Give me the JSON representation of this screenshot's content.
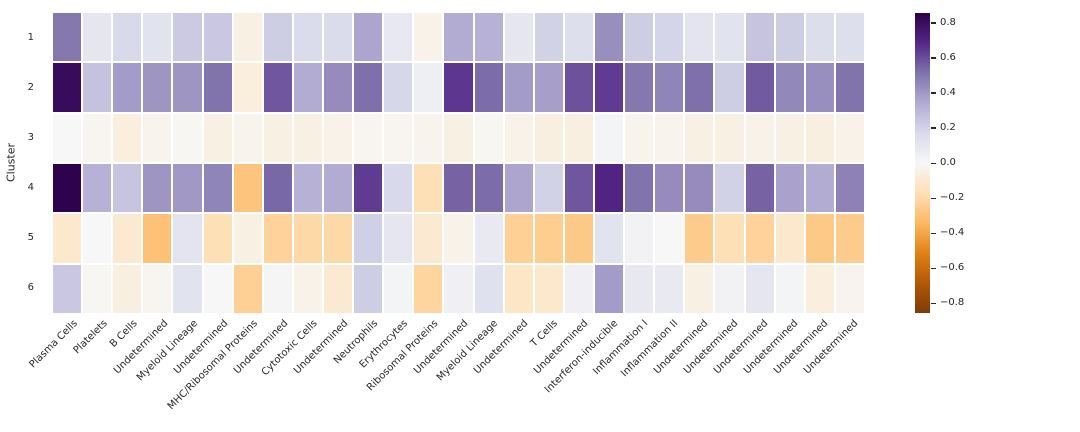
{
  "figure": {
    "background": "#ffffff"
  },
  "y_axis": {
    "label": "Cluster",
    "tick_labels": [
      "1",
      "2",
      "3",
      "4",
      "5",
      "6"
    ]
  },
  "x_axis": {
    "tick_labels": [
      "Plasma Cells",
      "Platelets",
      "B Cells",
      "Undetermined",
      "Myeloid Lineage",
      "Undetermined",
      "MHC/Ribosomal Proteins",
      "Undetermined",
      "Cytotoxic Cells",
      "Undetermined",
      "Neutrophils",
      "Erythrocytes",
      "Ribosomal Proteins",
      "Undetermined",
      "Myeloid Lineage",
      "Undetermined",
      "T Cells",
      "Undetermined",
      "Interferon-inducible",
      "Inflammation I",
      "Inflammation II",
      "Undetermined",
      "Undetermined",
      "Undetermined",
      "Undetermined",
      "Undetermined",
      "Undetermined"
    ]
  },
  "colorbar": {
    "tick_labels": [
      "0.8",
      "0.6",
      "0.4",
      "0.2",
      "0.0",
      "−0.2",
      "−0.4",
      "−0.6",
      "−0.8"
    ],
    "tick_values": [
      0.8,
      0.6,
      0.4,
      0.2,
      0.0,
      -0.2,
      -0.4,
      -0.6,
      -0.8
    ],
    "colormap_stops": [
      "#7f3b08",
      "#b35806",
      "#e08214",
      "#fdb863",
      "#fee0b6",
      "#f7f7f7",
      "#d8daeb",
      "#b2abd2",
      "#8073ac",
      "#542788",
      "#2d004b"
    ]
  },
  "chart_data": {
    "type": "heatmap",
    "title": "",
    "xlabel": "",
    "ylabel": "Cluster",
    "colormap": "PuOr",
    "vmin": -0.857,
    "vmax": 0.857,
    "grid": false,
    "legend_position": "right-colorbar",
    "rows": [
      "1",
      "2",
      "3",
      "4",
      "5",
      "6"
    ],
    "categories": [
      "Plasma Cells",
      "Platelets",
      "B Cells",
      "Undetermined",
      "Myeloid Lineage",
      "Undetermined",
      "MHC/Ribosomal Proteins",
      "Undetermined",
      "Cytotoxic Cells",
      "Undetermined",
      "Neutrophils",
      "Erythrocytes",
      "Ribosomal Proteins",
      "Undetermined",
      "Myeloid Lineage",
      "Undetermined",
      "T Cells",
      "Undetermined",
      "Interferon-inducible",
      "Inflammation I",
      "Inflammation II",
      "Undetermined",
      "Undetermined",
      "Undetermined",
      "Undetermined",
      "Undetermined",
      "Undetermined"
    ],
    "values": [
      [
        0.5,
        0.1,
        0.17,
        0.12,
        0.23,
        0.24,
        -0.05,
        0.22,
        0.16,
        0.16,
        0.36,
        0.09,
        -0.04,
        0.34,
        0.32,
        0.1,
        0.2,
        0.14,
        0.43,
        0.22,
        0.19,
        0.11,
        0.12,
        0.25,
        0.22,
        0.15,
        0.14
      ],
      [
        0.81,
        0.26,
        0.39,
        0.41,
        0.41,
        0.51,
        -0.07,
        0.58,
        0.34,
        0.44,
        0.52,
        0.18,
        0.05,
        0.65,
        0.53,
        0.39,
        0.38,
        0.59,
        0.64,
        0.5,
        0.46,
        0.52,
        0.22,
        0.57,
        0.45,
        0.43,
        0.51
      ],
      [
        0.0,
        -0.02,
        -0.07,
        -0.03,
        -0.01,
        -0.05,
        -0.03,
        -0.05,
        -0.05,
        -0.04,
        -0.02,
        -0.02,
        -0.03,
        -0.05,
        -0.01,
        -0.04,
        -0.06,
        -0.06,
        0.02,
        -0.03,
        -0.03,
        -0.05,
        -0.05,
        -0.04,
        -0.05,
        -0.06,
        -0.04
      ],
      [
        0.85,
        0.32,
        0.25,
        0.41,
        0.4,
        0.46,
        -0.29,
        0.54,
        0.32,
        0.34,
        0.64,
        0.17,
        -0.17,
        0.55,
        0.53,
        0.36,
        0.2,
        0.58,
        0.7,
        0.51,
        0.44,
        0.44,
        0.2,
        0.55,
        0.37,
        0.34,
        0.47
      ],
      [
        -0.11,
        0.0,
        -0.1,
        -0.3,
        0.11,
        -0.17,
        -0.05,
        -0.23,
        -0.2,
        -0.2,
        0.21,
        0.1,
        -0.1,
        -0.04,
        0.08,
        -0.24,
        -0.25,
        -0.27,
        0.12,
        0.03,
        0.0,
        -0.26,
        -0.17,
        -0.23,
        -0.11,
        -0.27,
        -0.26
      ],
      [
        0.24,
        -0.01,
        -0.06,
        -0.02,
        0.12,
        0.0,
        -0.24,
        0.01,
        -0.04,
        -0.1,
        0.22,
        0.02,
        -0.22,
        0.04,
        0.13,
        -0.13,
        -0.11,
        0.04,
        0.39,
        0.09,
        0.08,
        -0.05,
        0.03,
        0.1,
        0.02,
        -0.07,
        -0.03
      ]
    ]
  }
}
